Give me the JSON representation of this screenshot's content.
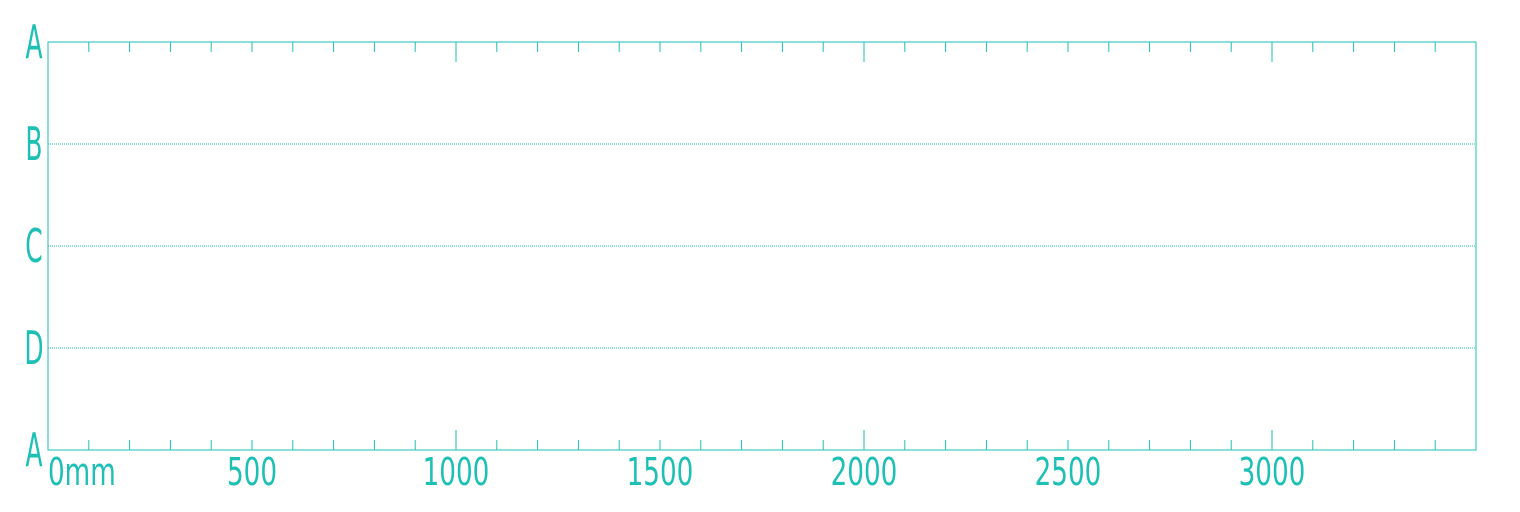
{
  "chart_data": {
    "type": "line",
    "title": "",
    "xlabel": "",
    "ylabel": "",
    "xlim": [
      0,
      3500
    ],
    "x_major_ticks": [
      0,
      500,
      1000,
      1500,
      2000,
      2500,
      3000
    ],
    "x_minor_step": 100,
    "x_tick_labels": [
      "0mm",
      "500",
      "1000",
      "1500",
      "2000",
      "2500",
      "3000"
    ],
    "y_labels": [
      "A",
      "B",
      "C",
      "D",
      "A"
    ],
    "grid": "dotted horizontal lines at B, C, D",
    "series": [],
    "color": "#1ebfb4"
  }
}
